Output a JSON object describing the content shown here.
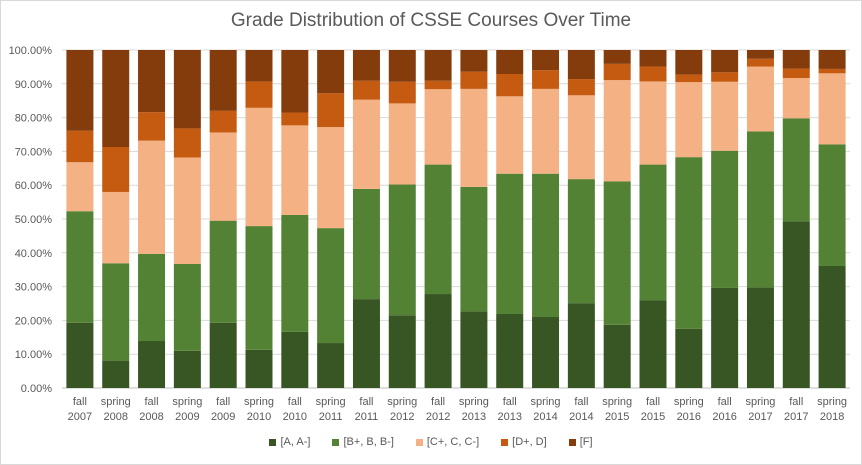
{
  "chart_data": {
    "type": "stacked-bar-100",
    "title": "Grade Distribution of CSSE Courses Over Time",
    "xlabel": "",
    "ylabel": "",
    "ylim": [
      0,
      100
    ],
    "y_ticks": [
      "0.00%",
      "10.00%",
      "20.00%",
      "30.00%",
      "40.00%",
      "50.00%",
      "60.00%",
      "70.00%",
      "80.00%",
      "90.00%",
      "100.00%"
    ],
    "grid": true,
    "legend_position": "bottom",
    "categories": [
      [
        "fall",
        "2007"
      ],
      [
        "spring",
        "2008"
      ],
      [
        "fall",
        "2008"
      ],
      [
        "spring",
        "2009"
      ],
      [
        "fall",
        "2009"
      ],
      [
        "spring",
        "2010"
      ],
      [
        "fall",
        "2010"
      ],
      [
        "spring",
        "2011"
      ],
      [
        "fall",
        "2011"
      ],
      [
        "spring",
        "2012"
      ],
      [
        "fall",
        "2012"
      ],
      [
        "spring",
        "2013"
      ],
      [
        "fall",
        "2013"
      ],
      [
        "spring",
        "2014"
      ],
      [
        "fall",
        "2014"
      ],
      [
        "spring",
        "2015"
      ],
      [
        "fall",
        "2015"
      ],
      [
        "spring",
        "2016"
      ],
      [
        "fall",
        "2016"
      ],
      [
        "spring",
        "2017"
      ],
      [
        "fall",
        "2017"
      ],
      [
        "spring",
        "2018"
      ]
    ],
    "series": [
      {
        "name": "[A, A-]",
        "color": "#375623",
        "values": [
          19.3,
          8.1,
          13.9,
          11.0,
          19.3,
          11.3,
          16.6,
          13.3,
          26.3,
          21.5,
          27.8,
          22.7,
          21.9,
          21.0,
          25.1,
          18.7,
          25.9,
          17.5,
          29.6,
          29.8,
          49.3,
          36.1
        ]
      },
      {
        "name": "[B+, B, B-]",
        "color": "#548235",
        "values": [
          33.0,
          28.8,
          25.8,
          25.7,
          30.2,
          36.6,
          34.6,
          34.0,
          32.6,
          38.7,
          38.3,
          36.8,
          41.5,
          42.4,
          36.7,
          42.4,
          40.2,
          50.8,
          40.6,
          46.1,
          30.5,
          36.0
        ]
      },
      {
        "name": "[C+, C, C-]",
        "color": "#F4B183",
        "values": [
          14.5,
          21.1,
          33.5,
          31.5,
          26.1,
          35.0,
          26.5,
          29.9,
          26.4,
          24.0,
          22.3,
          29.0,
          22.9,
          25.1,
          24.8,
          30.0,
          24.6,
          22.2,
          20.4,
          19.2,
          11.9,
          21.0
        ]
      },
      {
        "name": "[D+, D]",
        "color": "#C55A11",
        "values": [
          9.3,
          13.3,
          8.4,
          8.6,
          6.4,
          7.8,
          3.8,
          10.0,
          5.6,
          6.4,
          2.5,
          5.1,
          6.6,
          5.5,
          4.8,
          4.8,
          4.4,
          2.2,
          2.8,
          2.3,
          2.8,
          1.3
        ]
      },
      {
        "name": "[F]",
        "color": "#843C0C",
        "values": [
          23.9,
          28.7,
          18.4,
          23.2,
          18.0,
          9.3,
          18.5,
          12.8,
          9.1,
          9.4,
          9.1,
          6.4,
          7.1,
          6.0,
          8.6,
          4.1,
          4.9,
          7.3,
          6.6,
          2.6,
          5.5,
          5.6
        ]
      }
    ]
  }
}
